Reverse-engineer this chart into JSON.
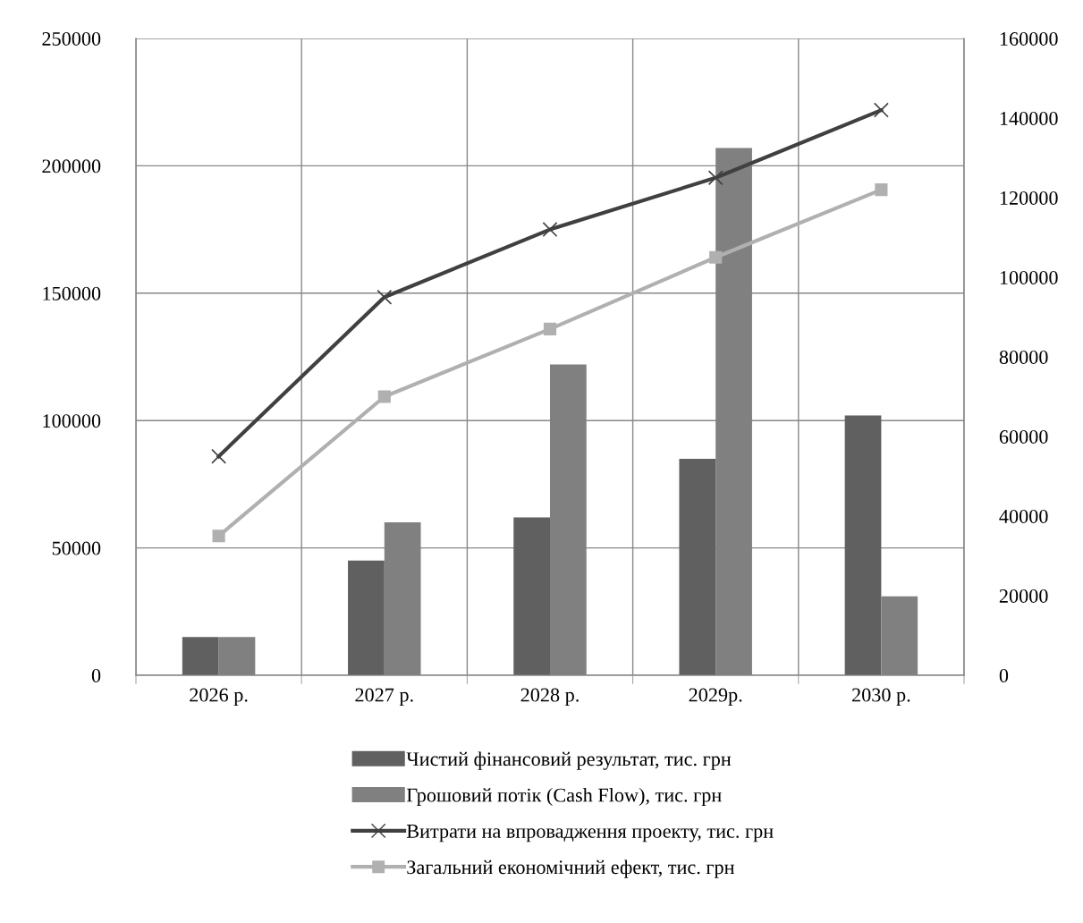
{
  "chart_data": {
    "type": "bar",
    "categories": [
      "2026 р.",
      "2027 р.",
      "2028 р.",
      "2029р.",
      "2030 р."
    ],
    "series": [
      {
        "name": "Чистий фінансовий результат, тис. грн",
        "color": "#606060",
        "values": [
          15000,
          45000,
          62000,
          85000,
          102000
        ]
      },
      {
        "name": "Грошовий потік (Cash Flow), тис. грн",
        "color": "#808080",
        "values": [
          15000,
          60000,
          122000,
          207000,
          31000
        ]
      },
      {
        "name": "Витрати на впровадження проекту, тис. грн",
        "type": "line",
        "axis": "y2",
        "marker": "cross",
        "color": "#404040",
        "values": [
          55000,
          95000,
          112000,
          125000,
          142000
        ]
      },
      {
        "name": "Загальний економічний ефект, тис. грн",
        "type": "line",
        "axis": "y2",
        "marker": "square",
        "color": "#b0b0b0",
        "values": [
          35000,
          70000,
          87000,
          105000,
          122000
        ]
      }
    ],
    "ylim": [
      0,
      250000
    ],
    "yticks": [
      0,
      50000,
      100000,
      150000,
      200000,
      250000
    ],
    "y2lim": [
      0,
      160000
    ],
    "y2ticks": [
      0,
      20000,
      40000,
      60000,
      80000,
      100000,
      120000,
      140000,
      160000
    ],
    "grid": true,
    "legend": "bottom"
  }
}
